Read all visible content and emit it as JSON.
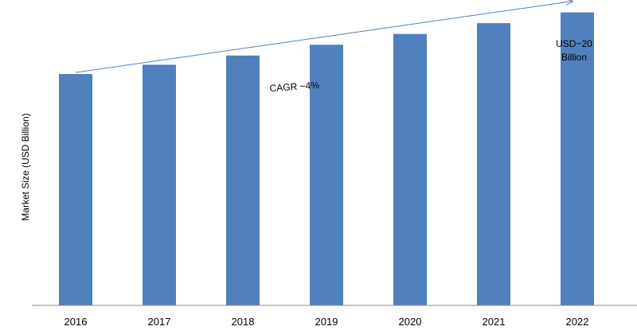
{
  "chart_data": {
    "type": "bar",
    "title": "",
    "xlabel": "",
    "ylabel": "Market Size (USD Billion)",
    "categories": [
      "2016",
      "2017",
      "2018",
      "2019",
      "2020",
      "2021",
      "2022"
    ],
    "values": [
      15.0,
      15.6,
      16.2,
      16.9,
      17.6,
      18.3,
      19.0
    ],
    "ylim": [
      0,
      19.8
    ],
    "grid": false,
    "bar_color": "#4f81bd",
    "annotations": {
      "cagr": "CAGR ~4%",
      "end_value_line1": "USD~20",
      "end_value_line2": "Billion"
    }
  }
}
